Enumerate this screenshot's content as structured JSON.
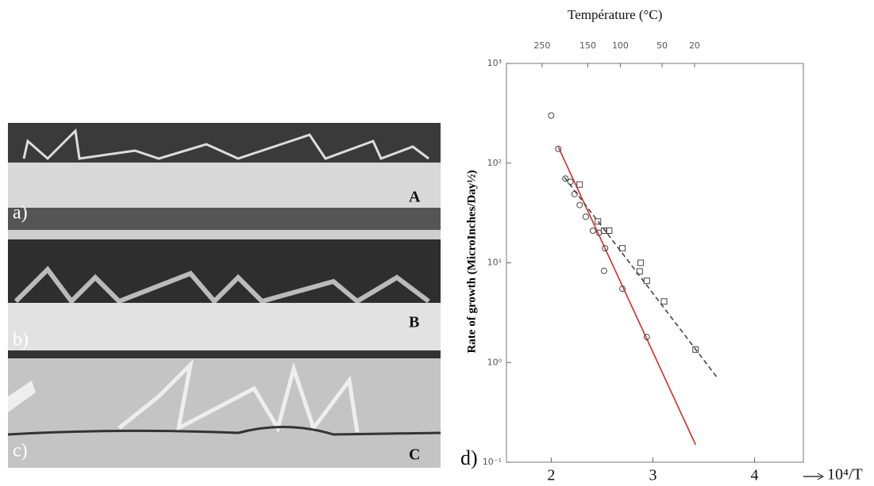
{
  "micrograph": {
    "panel_labels": [
      "a)",
      "b)",
      "c)"
    ],
    "layer_labels": [
      "A",
      "B",
      "C"
    ]
  },
  "chart_data": {
    "type": "scatter",
    "panel_label": "d)",
    "x_label": "10⁴/T",
    "y_label": "Rate of growth (MicroInches/Day½)",
    "x2_label": "Température (°C)",
    "xlim": [
      1.56,
      4.48
    ],
    "ylim": [
      0.1,
      1000
    ],
    "log_y": true,
    "xticks": [
      2,
      3,
      4
    ],
    "yticks": [
      {
        "value": 0.1,
        "label": "10⁻¹"
      },
      {
        "value": 1,
        "label": "10⁰"
      },
      {
        "value": 10,
        "label": "10¹"
      },
      {
        "value": 100,
        "label": "10²"
      },
      {
        "value": 1000,
        "label": "10³"
      }
    ],
    "x2ticks": [
      {
        "value": 1.91,
        "label": "250"
      },
      {
        "value": 2.36,
        "label": "150"
      },
      {
        "value": 2.68,
        "label": "100"
      },
      {
        "value": 3.09,
        "label": "50"
      },
      {
        "value": 3.41,
        "label": "20"
      }
    ],
    "series": [
      {
        "marker": "circle",
        "color": "#444",
        "x": [
          2.0,
          2.07,
          2.14,
          2.19,
          2.23,
          2.28,
          2.34,
          2.41,
          2.47,
          2.53,
          2.52,
          2.7,
          2.94
        ],
        "values": [
          300,
          139,
          70,
          65,
          49,
          38,
          29,
          21,
          20,
          14,
          8.3,
          5.5,
          1.8
        ]
      },
      {
        "marker": "square",
        "color": "#444",
        "x": [
          2.28,
          2.46,
          2.52,
          2.57,
          2.7,
          2.88,
          2.87,
          2.94,
          3.11,
          3.42
        ],
        "values": [
          61,
          26,
          21,
          21,
          14,
          10,
          8.2,
          6.6,
          4.1,
          1.35
        ]
      }
    ],
    "fits": [
      {
        "color": "#d42a2a",
        "dashed": false,
        "x": [
          2.07,
          3.42
        ],
        "values": [
          145,
          0.15
        ]
      },
      {
        "color": "#444",
        "dashed": true,
        "x": [
          2.13,
          3.64
        ],
        "values": [
          72,
          0.69
        ]
      }
    ]
  }
}
